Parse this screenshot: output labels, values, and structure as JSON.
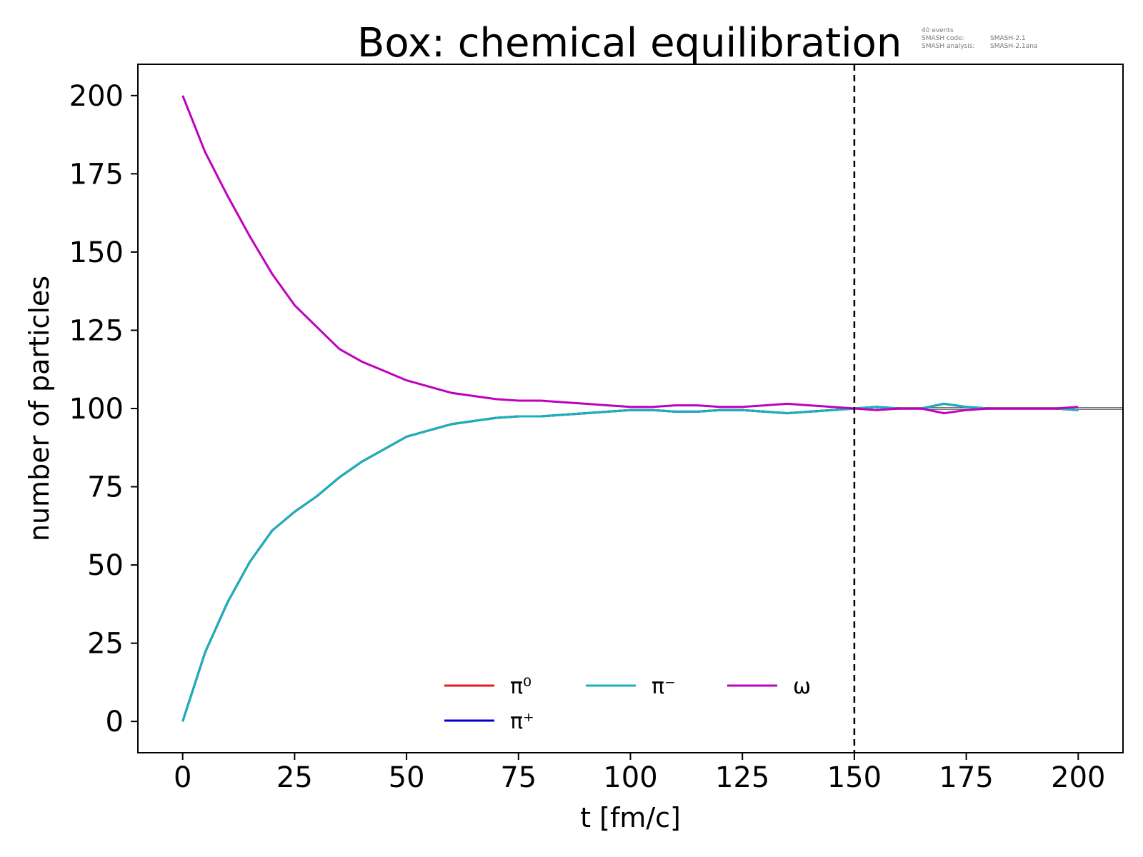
{
  "chart_data": {
    "type": "line",
    "title": "Box: chemical equilibration",
    "xlabel": "t [fm/c]",
    "ylabel": "number of particles",
    "xlim": [
      -10,
      210
    ],
    "ylim": [
      -10,
      210
    ],
    "xticks": [
      "0",
      "25",
      "50",
      "75",
      "100",
      "125",
      "150",
      "175",
      "200"
    ],
    "yticks": [
      "0",
      "25",
      "50",
      "75",
      "100",
      "125",
      "150",
      "175",
      "200"
    ],
    "grid": false,
    "legend_position": "bottom-center",
    "vertical_marker_x": 150,
    "reference_band": {
      "y": [
        99.7,
        100.3
      ],
      "x_start": 155,
      "x_end": 210
    },
    "series": [
      {
        "name": "π⁰",
        "color": "#e41a1c",
        "x": [
          0,
          5,
          10,
          15,
          20,
          25,
          30,
          35,
          40,
          45,
          50,
          55,
          60,
          65,
          70,
          75,
          80,
          85,
          90,
          95,
          100,
          105,
          110,
          115,
          120,
          125,
          130,
          135,
          140,
          145,
          150,
          155,
          160,
          165,
          170,
          175,
          180,
          185,
          190,
          195,
          200
        ],
        "y": [
          0,
          22,
          38,
          51,
          61,
          67,
          72,
          78,
          83,
          87,
          91,
          93,
          95,
          96,
          97,
          97.5,
          97.5,
          98,
          98.5,
          99,
          99.5,
          99.5,
          99,
          99,
          99.5,
          99.5,
          99,
          98.5,
          99,
          99.5,
          100,
          100.5,
          100,
          100,
          101.5,
          100.5,
          100,
          100,
          100,
          100,
          99.5
        ]
      },
      {
        "name": "π⁺",
        "color": "#0000cc",
        "x": [
          0,
          5,
          10,
          15,
          20,
          25,
          30,
          35,
          40,
          45,
          50,
          55,
          60,
          65,
          70,
          75,
          80,
          85,
          90,
          95,
          100,
          105,
          110,
          115,
          120,
          125,
          130,
          135,
          140,
          145,
          150,
          155,
          160,
          165,
          170,
          175,
          180,
          185,
          190,
          195,
          200
        ],
        "y": [
          0,
          22,
          38,
          51,
          61,
          67,
          72,
          78,
          83,
          87,
          91,
          93,
          95,
          96,
          97,
          97.5,
          97.5,
          98,
          98.5,
          99,
          99.5,
          99.5,
          99,
          99,
          99.5,
          99.5,
          99,
          98.5,
          99,
          99.5,
          100,
          100.5,
          100,
          100,
          101.5,
          100.5,
          100,
          100,
          100,
          100,
          99.5
        ]
      },
      {
        "name": "π⁻",
        "color": "#17b3b8",
        "x": [
          0,
          5,
          10,
          15,
          20,
          25,
          30,
          35,
          40,
          45,
          50,
          55,
          60,
          65,
          70,
          75,
          80,
          85,
          90,
          95,
          100,
          105,
          110,
          115,
          120,
          125,
          130,
          135,
          140,
          145,
          150,
          155,
          160,
          165,
          170,
          175,
          180,
          185,
          190,
          195,
          200
        ],
        "y": [
          0,
          22,
          38,
          51,
          61,
          67,
          72,
          78,
          83,
          87,
          91,
          93,
          95,
          96,
          97,
          97.5,
          97.5,
          98,
          98.5,
          99,
          99.5,
          99.5,
          99,
          99,
          99.5,
          99.5,
          99,
          98.5,
          99,
          99.5,
          100,
          100.5,
          100,
          100,
          101.5,
          100.5,
          100,
          100,
          100,
          100,
          99.5
        ]
      },
      {
        "name": "ω",
        "color": "#bf00bf",
        "x": [
          0,
          5,
          10,
          15,
          20,
          25,
          30,
          35,
          40,
          45,
          50,
          55,
          60,
          65,
          70,
          75,
          80,
          85,
          90,
          95,
          100,
          105,
          110,
          115,
          120,
          125,
          130,
          135,
          140,
          145,
          150,
          155,
          160,
          165,
          170,
          175,
          180,
          185,
          190,
          195,
          200
        ],
        "y": [
          200,
          182,
          168,
          155,
          143,
          133,
          126,
          119,
          115,
          112,
          109,
          107,
          105,
          104,
          103,
          102.5,
          102.5,
          102,
          101.5,
          101,
          100.5,
          100.5,
          101,
          101,
          100.5,
          100.5,
          101,
          101.5,
          101,
          100.5,
          100,
          99.5,
          100,
          100,
          98.5,
          99.5,
          100,
          100,
          100,
          100,
          100.5
        ]
      }
    ]
  },
  "annotation": {
    "line1": "40 events",
    "line2_key": "SMASH code:",
    "line2_val": "SMASH-2.1",
    "line3_key": "SMASH analysis:",
    "line3_val": "SMASH-2.1ana"
  }
}
